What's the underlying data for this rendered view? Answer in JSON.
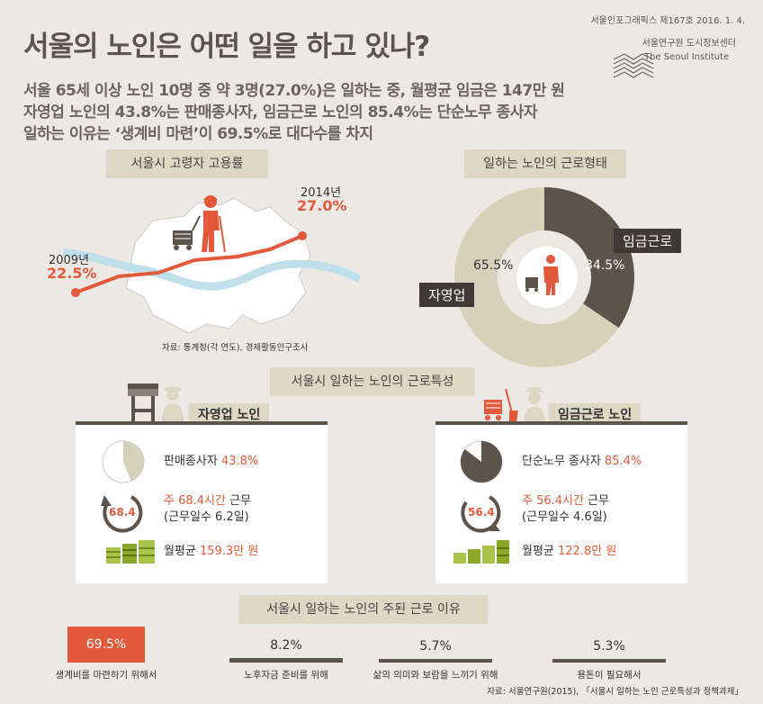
{
  "header": {
    "title": "서울의 노인은 어떤 일을 하고 있나?",
    "issue": "서울인포그래픽스 제167호 2016. 1. 4.",
    "institute_ko": "서울연구원 도시정보센터",
    "institute_en": "The Seoul Institute"
  },
  "summary": [
    "서울 65세 이상 노인 10명 중 약 3명(27.0%)은 일하는 중, 월평균 임금은 147만 원",
    "자영업 노인의 43.8%는 판매종사자, 임금근로 노인의 85.4%는 단순노무 종사자",
    "일하는 이유는 ‘생계비 마련’이 69.5%로 대다수를 차지"
  ],
  "employment": {
    "tag": "서울시 고령자 고용률",
    "start_year": "2009년",
    "start_value": "22.5%",
    "end_year": "2014년",
    "end_value": "27.0%",
    "source": "자료: 통계청(각 연도), 경제활동인구조사"
  },
  "workform": {
    "tag": "일하는 노인의 근로형태",
    "self_label": "자영업",
    "self_value": "65.5%",
    "wage_label": "임금근로",
    "wage_value": "34.5%"
  },
  "features_tag": "서울시 일하는 노인의 근로특성",
  "self_card": {
    "title": "자영업 노인",
    "occupation": "판매종사자",
    "occupation_pct": "43.8%",
    "hours_icon": "68.4",
    "hours_pre": "주 68.4시간",
    "hours_post": " 근무",
    "days": "(근무일수 6.2일)",
    "wage_pre": "월평균 ",
    "wage_value": "159.3만 원"
  },
  "wage_card": {
    "title": "임금근로 노인",
    "occupation": "단순노무 종사자",
    "occupation_pct": "85.4%",
    "hours_icon": "56.4",
    "hours_pre": "주 56.4시간",
    "hours_post": " 근무",
    "days": "(근무일수 4.6일)",
    "wage_pre": "월평균 ",
    "wage_value": "122.8만 원"
  },
  "reasons_tag": "서울시 일하는 노인의 주된 근로 이유",
  "source_bottom": "자료: 서울연구원(2015), 「서울시 일하는 노인 근로특성과 정책과제」",
  "colors": {
    "accent": "#e2593b",
    "dark": "#5c534a",
    "beige": "#d6d1b9",
    "olive": "#8aa92a",
    "background": "#ece9e5"
  },
  "chart_data": [
    {
      "type": "line",
      "x": [
        "2009년",
        "2014년"
      ],
      "series": [
        {
          "values": [
            22.5,
            27.0
          ]
        }
      ]
    },
    {
      "type": "pie",
      "categories": [
        "자영업",
        "임금근로"
      ],
      "values": [
        65.5,
        34.5
      ]
    },
    {
      "type": "pie",
      "categories": [
        "판매종사자"
      ],
      "values": [
        43.8
      ]
    },
    {
      "type": "pie",
      "categories": [
        "단순노무 종사자"
      ],
      "values": [
        85.4
      ]
    },
    {
      "type": "bar",
      "categories": [
        "생계비를 마련하기 위해서",
        "노후자금 준비를 위해",
        "삶의 의미와 보람을 느끼기 위해",
        "용돈이 필요해서"
      ],
      "values": [
        69.5,
        8.2,
        5.7,
        5.3
      ],
      "labels": [
        "69.5%",
        "8.2%",
        "5.7%",
        "5.3%"
      ]
    }
  ]
}
